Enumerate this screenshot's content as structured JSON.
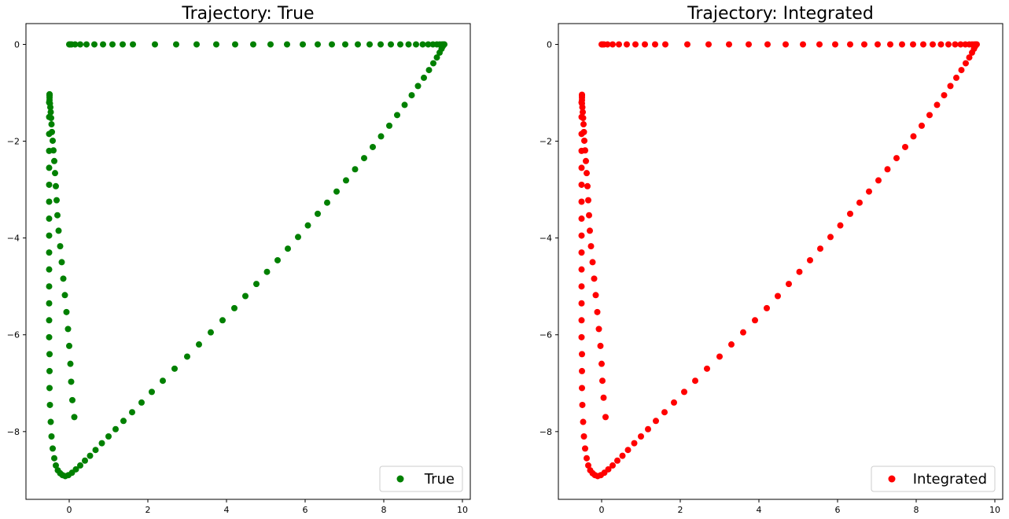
{
  "chart_data": [
    {
      "type": "scatter",
      "title": "Trajectory: True",
      "xlabel": "",
      "ylabel": "",
      "xlim": [
        -1.1,
        10.2
      ],
      "ylim": [
        -9.4,
        0.43
      ],
      "xticks": [
        0,
        2,
        4,
        6,
        8,
        10
      ],
      "yticks": [
        0,
        -2,
        -4,
        -6,
        -8
      ],
      "grid": false,
      "legend_position": "lower-right",
      "series": [
        {
          "name": "True",
          "color": "#008000",
          "x": [
            0.13,
            0.08,
            0.05,
            0.03,
            0.0,
            -0.03,
            -0.07,
            -0.11,
            -0.15,
            -0.19,
            -0.23,
            -0.27,
            -0.3,
            -0.32,
            -0.34,
            -0.36,
            -0.38,
            -0.4,
            -0.42,
            -0.44,
            -0.45,
            -0.46,
            -0.47,
            -0.48,
            -0.49,
            -0.5,
            -0.5,
            -0.5,
            -0.5,
            -0.5,
            -0.5,
            -0.51,
            -0.51,
            -0.51,
            -0.51,
            -0.51,
            -0.51,
            -0.51,
            -0.51,
            -0.51,
            -0.51,
            -0.51,
            -0.51,
            -0.51,
            -0.51,
            -0.51,
            -0.5,
            -0.5,
            -0.5,
            -0.49,
            -0.47,
            -0.45,
            -0.42,
            -0.38,
            -0.34,
            -0.29,
            -0.23,
            -0.17,
            -0.1,
            -0.02,
            0.07,
            0.17,
            0.28,
            0.4,
            0.53,
            0.67,
            0.83,
            1.0,
            1.18,
            1.38,
            1.6,
            1.84,
            2.1,
            2.38,
            2.68,
            3.0,
            3.3,
            3.6,
            3.9,
            4.2,
            4.48,
            4.76,
            5.03,
            5.3,
            5.56,
            5.82,
            6.07,
            6.32,
            6.56,
            6.8,
            7.04,
            7.27,
            7.5,
            7.72,
            7.93,
            8.14,
            8.34,
            8.53,
            8.71,
            8.87,
            9.02,
            9.15,
            9.26,
            9.35,
            9.42,
            9.47,
            9.5,
            9.52,
            9.53,
            9.54,
            9.52,
            9.48,
            9.42,
            9.35,
            9.25,
            9.13,
            8.99,
            8.82,
            8.63,
            8.42,
            8.18,
            7.92,
            7.64,
            7.34,
            7.02,
            6.68,
            6.32,
            5.94,
            5.54,
            5.12,
            4.68,
            4.22,
            3.74,
            3.24,
            2.72,
            2.18,
            1.62,
            1.36,
            1.1,
            0.86,
            0.64,
            0.44,
            0.28,
            0.15,
            0.06,
            0.02,
            0.0
          ],
          "y": [
            -7.7,
            -7.35,
            -6.97,
            -6.6,
            -6.23,
            -5.88,
            -5.53,
            -5.18,
            -4.84,
            -4.5,
            -4.17,
            -3.85,
            -3.53,
            -3.22,
            -2.93,
            -2.66,
            -2.41,
            -2.19,
            -1.99,
            -1.81,
            -1.65,
            -1.52,
            -1.4,
            -1.3,
            -1.22,
            -1.15,
            -1.1,
            -1.06,
            -1.04,
            -1.03,
            -1.05,
            -1.2,
            -1.5,
            -1.85,
            -2.2,
            -2.55,
            -2.9,
            -3.25,
            -3.6,
            -3.95,
            -4.3,
            -4.65,
            -5.0,
            -5.35,
            -5.7,
            -6.05,
            -6.4,
            -6.75,
            -7.1,
            -7.45,
            -7.8,
            -8.1,
            -8.35,
            -8.55,
            -8.7,
            -8.8,
            -8.86,
            -8.9,
            -8.92,
            -8.9,
            -8.85,
            -8.78,
            -8.7,
            -8.6,
            -8.5,
            -8.38,
            -8.24,
            -8.1,
            -7.95,
            -7.78,
            -7.6,
            -7.4,
            -7.18,
            -6.95,
            -6.7,
            -6.45,
            -6.2,
            -5.95,
            -5.7,
            -5.45,
            -5.2,
            -4.95,
            -4.7,
            -4.46,
            -4.22,
            -3.98,
            -3.74,
            -3.5,
            -3.27,
            -3.04,
            -2.81,
            -2.58,
            -2.35,
            -2.12,
            -1.9,
            -1.68,
            -1.46,
            -1.25,
            -1.05,
            -0.86,
            -0.69,
            -0.53,
            -0.39,
            -0.27,
            -0.17,
            -0.09,
            -0.04,
            -0.01,
            0.0,
            0.0,
            0.0,
            0.0,
            0.0,
            0.0,
            0.0,
            0.0,
            0.0,
            0.0,
            0.0,
            0.0,
            0.0,
            0.0,
            0.0,
            0.0,
            0.0,
            0.0,
            0.0,
            0.0,
            0.0,
            0.0,
            0.0,
            0.0,
            0.0,
            0.0,
            0.0,
            0.0,
            0.0,
            0.0,
            0.0,
            0.0,
            0.0,
            0.0,
            0.0,
            0.0,
            0.0,
            0.0,
            0.0
          ]
        }
      ]
    },
    {
      "type": "scatter",
      "title": "Trajectory: Integrated",
      "xlabel": "",
      "ylabel": "",
      "xlim": [
        -1.1,
        10.2
      ],
      "ylim": [
        -9.4,
        0.43
      ],
      "xticks": [
        0,
        2,
        4,
        6,
        8,
        10
      ],
      "yticks": [
        0,
        -2,
        -4,
        -6,
        -8
      ],
      "grid": false,
      "legend_position": "lower-right",
      "series": [
        {
          "name": "Integrated",
          "color": "#ff0000",
          "x": [
            0.1,
            0.05,
            0.02,
            0.0,
            -0.03,
            -0.07,
            -0.11,
            -0.15,
            -0.19,
            -0.23,
            -0.27,
            -0.3,
            -0.32,
            -0.34,
            -0.36,
            -0.38,
            -0.4,
            -0.42,
            -0.44,
            -0.45,
            -0.46,
            -0.47,
            -0.48,
            -0.49,
            -0.5,
            -0.5,
            -0.5,
            -0.5,
            -0.5,
            -0.5,
            -0.51,
            -0.51,
            -0.51,
            -0.51,
            -0.51,
            -0.51,
            -0.51,
            -0.51,
            -0.51,
            -0.51,
            -0.51,
            -0.51,
            -0.51,
            -0.51,
            -0.51,
            -0.5,
            -0.5,
            -0.5,
            -0.49,
            -0.47,
            -0.45,
            -0.42,
            -0.38,
            -0.34,
            -0.29,
            -0.23,
            -0.17,
            -0.1,
            -0.02,
            0.07,
            0.17,
            0.28,
            0.4,
            0.53,
            0.67,
            0.83,
            1.0,
            1.18,
            1.38,
            1.6,
            1.84,
            2.1,
            2.38,
            2.68,
            3.0,
            3.3,
            3.6,
            3.9,
            4.2,
            4.48,
            4.76,
            5.03,
            5.3,
            5.56,
            5.82,
            6.07,
            6.32,
            6.56,
            6.8,
            7.04,
            7.27,
            7.5,
            7.72,
            7.93,
            8.14,
            8.34,
            8.53,
            8.71,
            8.87,
            9.02,
            9.15,
            9.26,
            9.35,
            9.42,
            9.47,
            9.5,
            9.52,
            9.53,
            9.54,
            9.52,
            9.48,
            9.42,
            9.35,
            9.25,
            9.13,
            8.99,
            8.82,
            8.63,
            8.42,
            8.18,
            7.92,
            7.64,
            7.34,
            7.02,
            6.68,
            6.32,
            5.94,
            5.54,
            5.12,
            4.68,
            4.22,
            3.74,
            3.24,
            2.72,
            2.18,
            1.62,
            1.36,
            1.1,
            0.86,
            0.64,
            0.44,
            0.28,
            0.15,
            0.06,
            0.02,
            0.0
          ],
          "y": [
            -7.7,
            -7.3,
            -6.95,
            -6.6,
            -6.23,
            -5.88,
            -5.53,
            -5.18,
            -4.84,
            -4.5,
            -4.17,
            -3.85,
            -3.53,
            -3.22,
            -2.93,
            -2.66,
            -2.41,
            -2.19,
            -1.99,
            -1.81,
            -1.65,
            -1.52,
            -1.4,
            -1.3,
            -1.22,
            -1.15,
            -1.1,
            -1.06,
            -1.04,
            -1.05,
            -1.2,
            -1.5,
            -1.85,
            -2.2,
            -2.55,
            -2.9,
            -3.25,
            -3.6,
            -3.95,
            -4.3,
            -4.65,
            -5.0,
            -5.35,
            -5.7,
            -6.05,
            -6.4,
            -6.75,
            -7.1,
            -7.45,
            -7.8,
            -8.1,
            -8.35,
            -8.55,
            -8.7,
            -8.8,
            -8.86,
            -8.9,
            -8.92,
            -8.9,
            -8.85,
            -8.78,
            -8.7,
            -8.6,
            -8.5,
            -8.38,
            -8.24,
            -8.1,
            -7.95,
            -7.78,
            -7.6,
            -7.4,
            -7.18,
            -6.95,
            -6.7,
            -6.45,
            -6.2,
            -5.95,
            -5.7,
            -5.45,
            -5.2,
            -4.95,
            -4.7,
            -4.46,
            -4.22,
            -3.98,
            -3.74,
            -3.5,
            -3.27,
            -3.04,
            -2.81,
            -2.58,
            -2.35,
            -2.12,
            -1.9,
            -1.68,
            -1.46,
            -1.25,
            -1.05,
            -0.86,
            -0.69,
            -0.53,
            -0.39,
            -0.27,
            -0.17,
            -0.09,
            -0.04,
            -0.01,
            0.0,
            0.0,
            0.0,
            0.0,
            0.0,
            0.0,
            0.0,
            0.0,
            0.0,
            0.0,
            0.0,
            0.0,
            0.0,
            0.0,
            0.0,
            0.0,
            0.0,
            0.0,
            0.0,
            0.0,
            0.0,
            0.0,
            0.0,
            0.0,
            0.0,
            0.0,
            0.0,
            0.0,
            0.0,
            0.0,
            0.0,
            0.0,
            0.0,
            0.0,
            0.0,
            0.0,
            0.0,
            0.0,
            0.0
          ]
        }
      ]
    }
  ]
}
